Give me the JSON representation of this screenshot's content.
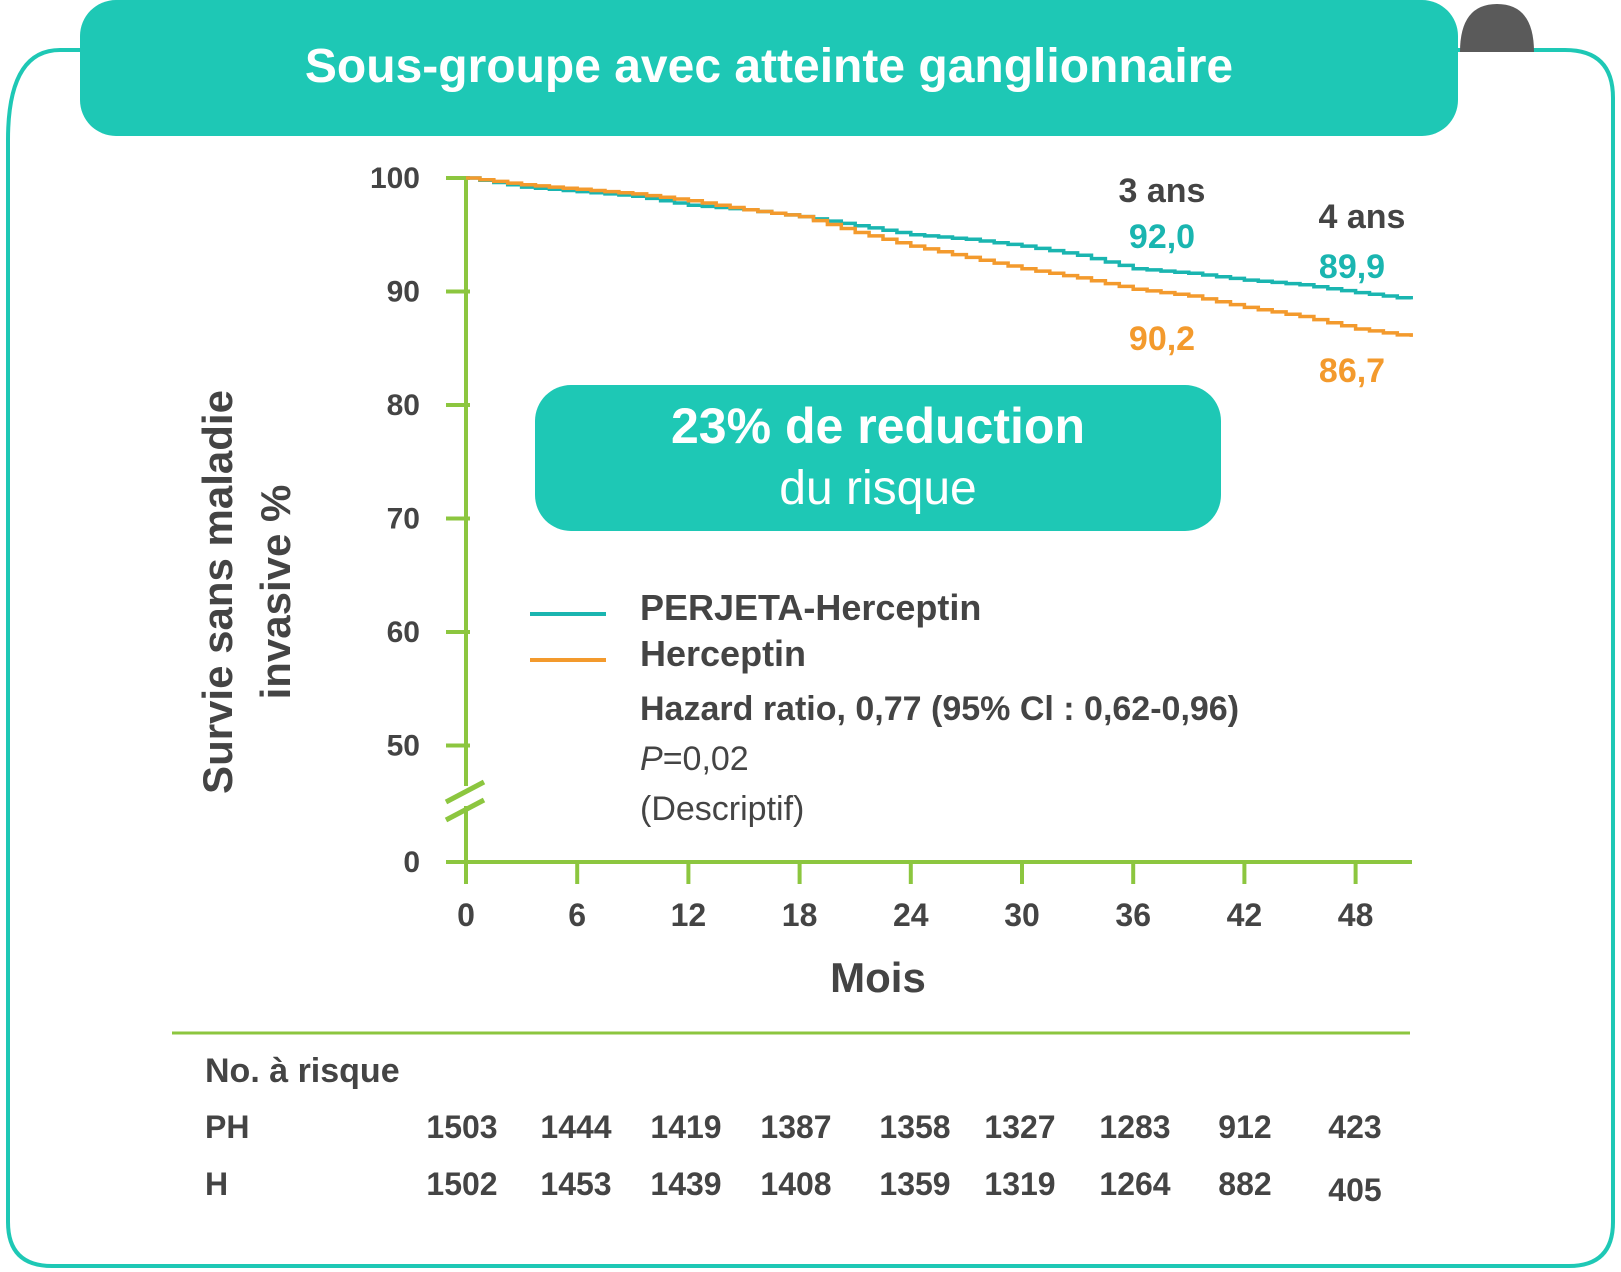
{
  "header": {
    "title": "Sous-groupe avec atteinte ganglionnaire"
  },
  "chart_data": {
    "type": "line",
    "ylabel_line1": "Survie sans maladie",
    "ylabel_line2": "invasive %",
    "xlabel": "Mois",
    "x_ticks": [
      0,
      6,
      12,
      18,
      24,
      30,
      36,
      42,
      48
    ],
    "y_ticks": [
      0,
      50,
      60,
      70,
      80,
      90,
      100
    ],
    "y_axis_break": true,
    "xlim": [
      0,
      51
    ],
    "ylim": [
      45,
      100
    ],
    "series": [
      {
        "name": "PERJETA-Herceptin",
        "color": "#1ab5b0",
        "x": [
          0,
          3,
          6,
          9,
          12,
          15,
          18,
          21,
          24,
          27,
          30,
          33,
          36,
          39,
          42,
          45,
          48,
          51
        ],
        "y": [
          100,
          99.2,
          98.8,
          98.4,
          97.6,
          97.2,
          96.6,
          95.8,
          95.0,
          94.6,
          94.0,
          93.2,
          92.0,
          91.6,
          91.0,
          90.6,
          89.9,
          89.3
        ]
      },
      {
        "name": "Herceptin",
        "color": "#f39a2d",
        "x": [
          0,
          3,
          6,
          9,
          12,
          15,
          18,
          21,
          24,
          27,
          30,
          33,
          36,
          39,
          42,
          45,
          48,
          51
        ],
        "y": [
          100,
          99.4,
          99.0,
          98.6,
          98.0,
          97.2,
          96.6,
          95.2,
          94.0,
          93.0,
          92.0,
          91.2,
          90.2,
          89.6,
          88.6,
          87.8,
          86.7,
          86.0
        ]
      }
    ],
    "annotations": {
      "three_years": {
        "label": "3 ans",
        "ph": "92,0",
        "h": "90,2"
      },
      "four_years": {
        "label": "4 ans",
        "ph": "89,9",
        "h": "86,7"
      }
    },
    "legend": {
      "ph": "PERJETA-Herceptin",
      "h": "Herceptin",
      "hazard": "Hazard ratio, 0,77 (95% Cl : 0,62-0,96)",
      "p_letter": "P",
      "p_value": "=0,02",
      "descriptive": "(Descriptif)"
    },
    "callout": {
      "line1": "23% de reduction",
      "line2": "du risque"
    }
  },
  "risk_table": {
    "title": "No. à risque",
    "rows": [
      {
        "label": "PH",
        "values": [
          "1503",
          "1444",
          "1419",
          "1387",
          "1358",
          "1327",
          "1283",
          "912",
          "423"
        ]
      },
      {
        "label": "H",
        "values": [
          "1502",
          "1453",
          "1439",
          "1408",
          "1359",
          "1319",
          "1264",
          "882",
          "405"
        ]
      }
    ]
  },
  "colors": {
    "teal": "#1ec8b5",
    "teal_line": "#1ab5b0",
    "orange": "#f39a2d",
    "axis_green": "#8cc63f",
    "text": "#444444",
    "dark_tab": "#5a5a5a"
  }
}
